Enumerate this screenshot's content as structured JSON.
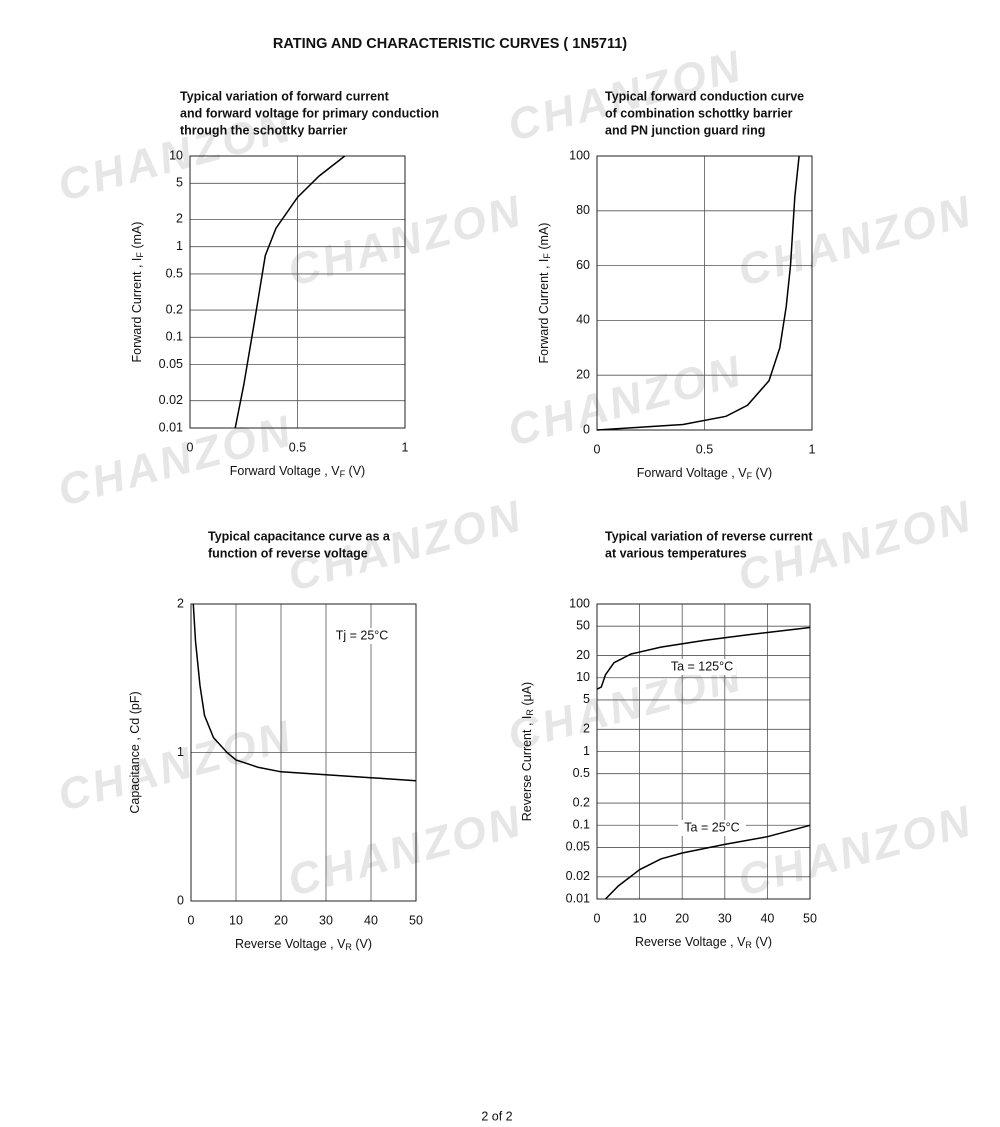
{
  "header": {
    "title": "RATING AND CHARACTERISTIC CURVES  ( 1N5711)"
  },
  "footer": {
    "page": "2  of 2"
  },
  "watermark": "CHANZON",
  "chart_data": [
    {
      "type": "line",
      "title": [
        "Typical variation of forward current",
        "and forward voltage for primary conduction",
        "through the schottky barrier"
      ],
      "xlabel": {
        "text": "Forward Voltage , V",
        "sub": "F",
        "unit": " (V)"
      },
      "ylabel": {
        "text": "Forward Current , I",
        "sub": "F",
        "unit": " (mA)"
      },
      "xlim": [
        0,
        1
      ],
      "xticks": [
        0,
        0.5,
        1
      ],
      "ylim": [
        0.01,
        10
      ],
      "yscale": "log",
      "yticks": [
        10,
        5,
        2,
        1,
        0.5,
        0.2,
        0.1,
        0.05,
        0.02,
        0.01
      ],
      "grid": true,
      "series": [
        {
          "color": "#000000",
          "x": [
            0.21,
            0.25,
            0.3,
            0.35,
            0.4,
            0.5,
            0.6,
            0.72
          ],
          "values": [
            0.01,
            0.03,
            0.15,
            0.8,
            1.6,
            3.5,
            6,
            10
          ]
        }
      ]
    },
    {
      "type": "line",
      "title": [
        "Typical forward conduction curve",
        "of combination schottky barrier",
        "and PN junction guard ring"
      ],
      "xlabel": {
        "text": "Forward Voltage , V",
        "sub": "F",
        "unit": " (V)"
      },
      "ylabel": {
        "text": "Forward Current , I",
        "sub": "F",
        "unit": " (mA)"
      },
      "xlim": [
        0,
        1
      ],
      "xticks": [
        0,
        0.5,
        1
      ],
      "ylim": [
        0,
        100
      ],
      "yticks": [
        100,
        80,
        60,
        40,
        20,
        0
      ],
      "grid": true,
      "series": [
        {
          "color": "#000000",
          "x": [
            0,
            0.2,
            0.4,
            0.6,
            0.7,
            0.8,
            0.85,
            0.88,
            0.9,
            0.92,
            0.94
          ],
          "values": [
            0,
            1,
            2,
            5,
            9,
            18,
            30,
            45,
            60,
            85,
            100
          ]
        }
      ]
    },
    {
      "type": "line",
      "title": [
        "Typical capacitance curve as a",
        "function of reverse voltage"
      ],
      "xlabel": {
        "text": "Reverse Voltage , V",
        "sub": "R",
        "unit": " (V)"
      },
      "ylabel": {
        "text": "Capacitance , Cd (pF)",
        "sub": "",
        "unit": ""
      },
      "annotation": "Tj = 25°C",
      "xlim": [
        0,
        50
      ],
      "xticks": [
        0,
        10,
        20,
        30,
        40,
        50
      ],
      "ylim": [
        0,
        2
      ],
      "yticks": [
        2,
        1,
        0
      ],
      "grid": true,
      "series": [
        {
          "color": "#000000",
          "x": [
            0.5,
            1,
            2,
            3,
            5,
            8,
            10,
            15,
            20,
            30,
            40,
            50
          ],
          "values": [
            2,
            1.75,
            1.45,
            1.25,
            1.1,
            1.0,
            0.95,
            0.9,
            0.87,
            0.85,
            0.83,
            0.81
          ]
        }
      ]
    },
    {
      "type": "line",
      "title": [
        "Typical variation of reverse current",
        "at various temperatures"
      ],
      "xlabel": {
        "text": "Reverse Voltage , V",
        "sub": "R",
        "unit": " (V)"
      },
      "ylabel": {
        "text": "Reverse Current , I",
        "sub": "R",
        "unit": " (μA)"
      },
      "xlim": [
        0,
        50
      ],
      "xticks": [
        0,
        10,
        20,
        30,
        40,
        50
      ],
      "ylim": [
        0.01,
        100
      ],
      "yscale": "log",
      "yticks": [
        100,
        50,
        20,
        10,
        5,
        2,
        1,
        0.5,
        0.2,
        0.1,
        0.05,
        0.02,
        0.01
      ],
      "grid": true,
      "series": [
        {
          "name": "Ta = 125°C",
          "color": "#000000",
          "x": [
            0,
            1,
            2,
            4,
            8,
            15,
            25,
            35,
            50
          ],
          "values": [
            7,
            7.5,
            11,
            16,
            21,
            26,
            32,
            38,
            48
          ]
        },
        {
          "name": "Ta = 25°C",
          "color": "#000000",
          "x": [
            2,
            5,
            10,
            15,
            20,
            30,
            40,
            50
          ],
          "values": [
            0.01,
            0.015,
            0.025,
            0.035,
            0.042,
            0.055,
            0.07,
            0.1
          ]
        }
      ]
    }
  ]
}
